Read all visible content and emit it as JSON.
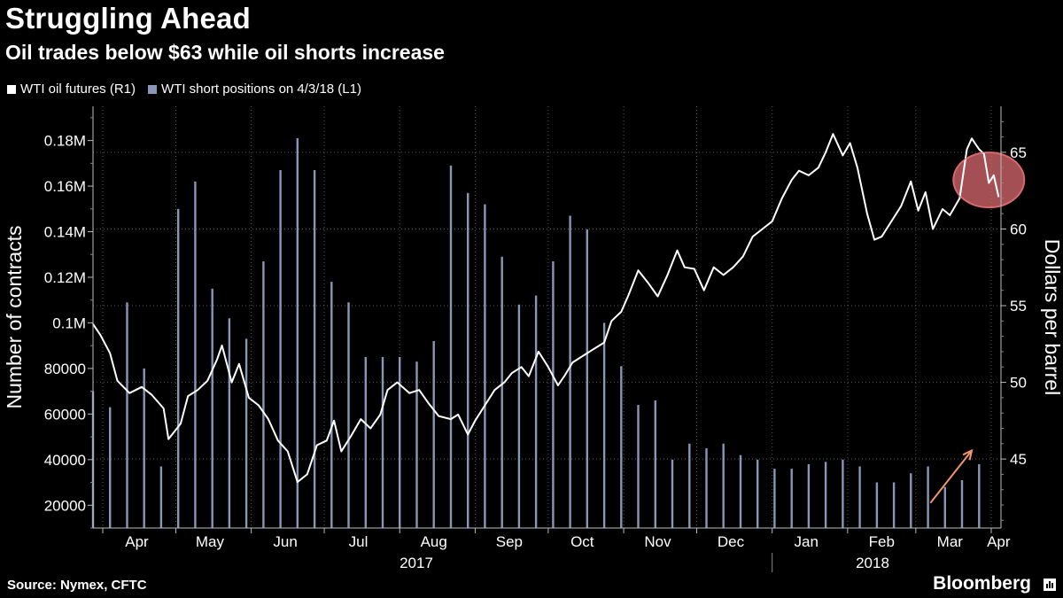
{
  "title": "Struggling Ahead",
  "subtitle": "Oil trades below $63 while oil shorts increase",
  "legend": [
    {
      "label": "WTI oil futures (R1)",
      "color": "#ffffff"
    },
    {
      "label": "WTI short positions on 4/3/18 (L1)",
      "color": "#8a96b8"
    }
  ],
  "source": "Source: Nymex, CFTC",
  "brand": "Bloomberg",
  "colors": {
    "background": "#000000",
    "bars": "#8a96b8",
    "line": "#ffffff",
    "highlight": "#d9696f",
    "arrow": "#f2956a"
  },
  "chart_data": {
    "type": "bar+line",
    "grid": true,
    "x_axis": {
      "tick_labels": [
        "Apr",
        "May",
        "Jun",
        "Jul",
        "Aug",
        "Sep",
        "Oct",
        "Nov",
        "Dec",
        "Jan",
        "Feb",
        "Mar",
        "Apr"
      ],
      "year_labels": [
        "2017",
        "2018"
      ],
      "range": [
        "2017-03-28",
        "2018-04-05"
      ]
    },
    "left_axis": {
      "label": "Number of contracts",
      "range": [
        10000,
        195000
      ],
      "ticks": [
        20000,
        40000,
        60000,
        80000,
        100000,
        120000,
        140000,
        160000,
        180000
      ],
      "tick_labels": [
        "20000",
        "40000",
        "60000",
        "80000",
        "0.1M",
        "0.12M",
        "0.14M",
        "0.16M",
        "0.18M"
      ]
    },
    "right_axis": {
      "label": "Dollars per barrel",
      "range": [
        40.5,
        68
      ],
      "ticks": [
        45,
        50,
        55,
        60,
        65
      ],
      "tick_labels": [
        "45",
        "50",
        "55",
        "60",
        "65"
      ]
    },
    "series": [
      {
        "name": "WTI short positions on 4/3/18 (L1)",
        "axis": "left",
        "type": "bar",
        "points": [
          [
            "2017-03-28",
            70000
          ],
          [
            "2017-04-04",
            63000
          ],
          [
            "2017-04-11",
            109000
          ],
          [
            "2017-04-18",
            80000
          ],
          [
            "2017-04-25",
            37000
          ],
          [
            "2017-05-02",
            150000
          ],
          [
            "2017-05-09",
            162000
          ],
          [
            "2017-05-16",
            115000
          ],
          [
            "2017-05-23",
            102000
          ],
          [
            "2017-05-30",
            93000
          ],
          [
            "2017-06-06",
            127000
          ],
          [
            "2017-06-13",
            167000
          ],
          [
            "2017-06-20",
            181000
          ],
          [
            "2017-06-27",
            167000
          ],
          [
            "2017-07-04",
            118000
          ],
          [
            "2017-07-11",
            109000
          ],
          [
            "2017-07-18",
            85000
          ],
          [
            "2017-07-25",
            85000
          ],
          [
            "2017-08-01",
            85000
          ],
          [
            "2017-08-08",
            83000
          ],
          [
            "2017-08-15",
            92000
          ],
          [
            "2017-08-22",
            169000
          ],
          [
            "2017-08-29",
            157000
          ],
          [
            "2017-09-05",
            152000
          ],
          [
            "2017-09-12",
            129000
          ],
          [
            "2017-09-19",
            108000
          ],
          [
            "2017-09-26",
            112000
          ],
          [
            "2017-10-03",
            127000
          ],
          [
            "2017-10-10",
            147000
          ],
          [
            "2017-10-17",
            141000
          ],
          [
            "2017-10-24",
            100000
          ],
          [
            "2017-10-31",
            81000
          ],
          [
            "2017-11-07",
            64000
          ],
          [
            "2017-11-14",
            66000
          ],
          [
            "2017-11-21",
            40000
          ],
          [
            "2017-11-28",
            47000
          ],
          [
            "2017-12-05",
            45000
          ],
          [
            "2017-12-12",
            47000
          ],
          [
            "2017-12-19",
            42000
          ],
          [
            "2017-12-26",
            40000
          ],
          [
            "2018-01-02",
            36000
          ],
          [
            "2018-01-09",
            36000
          ],
          [
            "2018-01-16",
            38000
          ],
          [
            "2018-01-23",
            39000
          ],
          [
            "2018-01-30",
            40000
          ],
          [
            "2018-02-06",
            37000
          ],
          [
            "2018-02-13",
            30000
          ],
          [
            "2018-02-20",
            30000
          ],
          [
            "2018-02-27",
            34000
          ],
          [
            "2018-03-06",
            37000
          ],
          [
            "2018-03-13",
            28000
          ],
          [
            "2018-03-20",
            31000
          ],
          [
            "2018-03-27",
            38000
          ]
        ]
      },
      {
        "name": "WTI oil futures (R1)",
        "axis": "right",
        "type": "line",
        "points": [
          [
            "2017-03-28",
            53.8
          ],
          [
            "2017-03-31",
            53.1
          ],
          [
            "2017-04-04",
            51.9
          ],
          [
            "2017-04-07",
            50.1
          ],
          [
            "2017-04-12",
            49.3
          ],
          [
            "2017-04-17",
            49.7
          ],
          [
            "2017-04-21",
            49.2
          ],
          [
            "2017-04-26",
            48.3
          ],
          [
            "2017-04-28",
            46.3
          ],
          [
            "2017-05-03",
            47.3
          ],
          [
            "2017-05-06",
            49.1
          ],
          [
            "2017-05-10",
            49.5
          ],
          [
            "2017-05-14",
            50.1
          ],
          [
            "2017-05-18",
            51.5
          ],
          [
            "2017-05-20",
            52.4
          ],
          [
            "2017-05-24",
            50.0
          ],
          [
            "2017-05-27",
            51.2
          ],
          [
            "2017-05-31",
            49.0
          ],
          [
            "2017-06-04",
            48.5
          ],
          [
            "2017-06-08",
            47.6
          ],
          [
            "2017-06-12",
            46.2
          ],
          [
            "2017-06-16",
            45.5
          ],
          [
            "2017-06-20",
            43.5
          ],
          [
            "2017-06-24",
            44.0
          ],
          [
            "2017-06-28",
            45.9
          ],
          [
            "2017-07-02",
            46.2
          ],
          [
            "2017-07-05",
            47.5
          ],
          [
            "2017-07-08",
            45.5
          ],
          [
            "2017-07-12",
            46.5
          ],
          [
            "2017-07-16",
            47.6
          ],
          [
            "2017-07-20",
            47.0
          ],
          [
            "2017-07-24",
            47.9
          ],
          [
            "2017-07-27",
            49.5
          ],
          [
            "2017-07-31",
            50.0
          ],
          [
            "2017-08-05",
            49.3
          ],
          [
            "2017-08-09",
            49.5
          ],
          [
            "2017-08-13",
            48.6
          ],
          [
            "2017-08-17",
            47.8
          ],
          [
            "2017-08-22",
            47.6
          ],
          [
            "2017-08-25",
            47.9
          ],
          [
            "2017-08-29",
            46.6
          ],
          [
            "2017-09-01",
            47.5
          ],
          [
            "2017-09-05",
            48.5
          ],
          [
            "2017-09-09",
            49.5
          ],
          [
            "2017-09-13",
            50.0
          ],
          [
            "2017-09-16",
            50.6
          ],
          [
            "2017-09-20",
            51.0
          ],
          [
            "2017-09-23",
            50.4
          ],
          [
            "2017-09-27",
            52.0
          ],
          [
            "2017-10-01",
            51.0
          ],
          [
            "2017-10-05",
            49.8
          ],
          [
            "2017-10-08",
            50.5
          ],
          [
            "2017-10-11",
            51.3
          ],
          [
            "2017-10-16",
            51.8
          ],
          [
            "2017-10-19",
            52.1
          ],
          [
            "2017-10-24",
            52.6
          ],
          [
            "2017-10-27",
            54.0
          ],
          [
            "2017-10-31",
            54.6
          ],
          [
            "2017-11-03",
            55.7
          ],
          [
            "2017-11-07",
            57.3
          ],
          [
            "2017-11-11",
            56.5
          ],
          [
            "2017-11-15",
            55.6
          ],
          [
            "2017-11-19",
            57.0
          ],
          [
            "2017-11-23",
            58.6
          ],
          [
            "2017-11-26",
            57.5
          ],
          [
            "2017-11-30",
            57.4
          ],
          [
            "2017-12-04",
            56.0
          ],
          [
            "2017-12-08",
            57.5
          ],
          [
            "2017-12-12",
            57.0
          ],
          [
            "2017-12-16",
            57.5
          ],
          [
            "2017-12-20",
            58.2
          ],
          [
            "2017-12-24",
            59.5
          ],
          [
            "2017-12-28",
            60.0
          ],
          [
            "2018-01-01",
            60.5
          ],
          [
            "2018-01-05",
            62.0
          ],
          [
            "2018-01-09",
            63.2
          ],
          [
            "2018-01-12",
            63.8
          ],
          [
            "2018-01-16",
            63.5
          ],
          [
            "2018-01-20",
            64.0
          ],
          [
            "2018-01-23",
            65.0
          ],
          [
            "2018-01-26",
            66.2
          ],
          [
            "2018-01-30",
            64.8
          ],
          [
            "2018-02-02",
            65.6
          ],
          [
            "2018-02-05",
            64.0
          ],
          [
            "2018-02-09",
            61.0
          ],
          [
            "2018-02-12",
            59.3
          ],
          [
            "2018-02-15",
            59.5
          ],
          [
            "2018-02-19",
            60.5
          ],
          [
            "2018-02-23",
            61.5
          ],
          [
            "2018-02-27",
            63.1
          ],
          [
            "2018-03-02",
            61.2
          ],
          [
            "2018-03-05",
            62.4
          ],
          [
            "2018-03-08",
            60.0
          ],
          [
            "2018-03-12",
            61.3
          ],
          [
            "2018-03-15",
            60.9
          ],
          [
            "2018-03-19",
            62.0
          ],
          [
            "2018-03-22",
            65.2
          ],
          [
            "2018-03-24",
            65.9
          ],
          [
            "2018-03-27",
            65.2
          ],
          [
            "2018-03-29",
            64.9
          ],
          [
            "2018-03-31",
            63.0
          ],
          [
            "2018-04-02",
            63.5
          ],
          [
            "2018-04-04",
            62.1
          ]
        ]
      }
    ],
    "annotations": [
      {
        "type": "circle",
        "at": [
          "2018-03-31",
          63.2
        ]
      },
      {
        "type": "arrow",
        "from": [
          "2018-03-07",
          21000
        ],
        "to": [
          "2018-03-24",
          44000
        ]
      }
    ]
  }
}
